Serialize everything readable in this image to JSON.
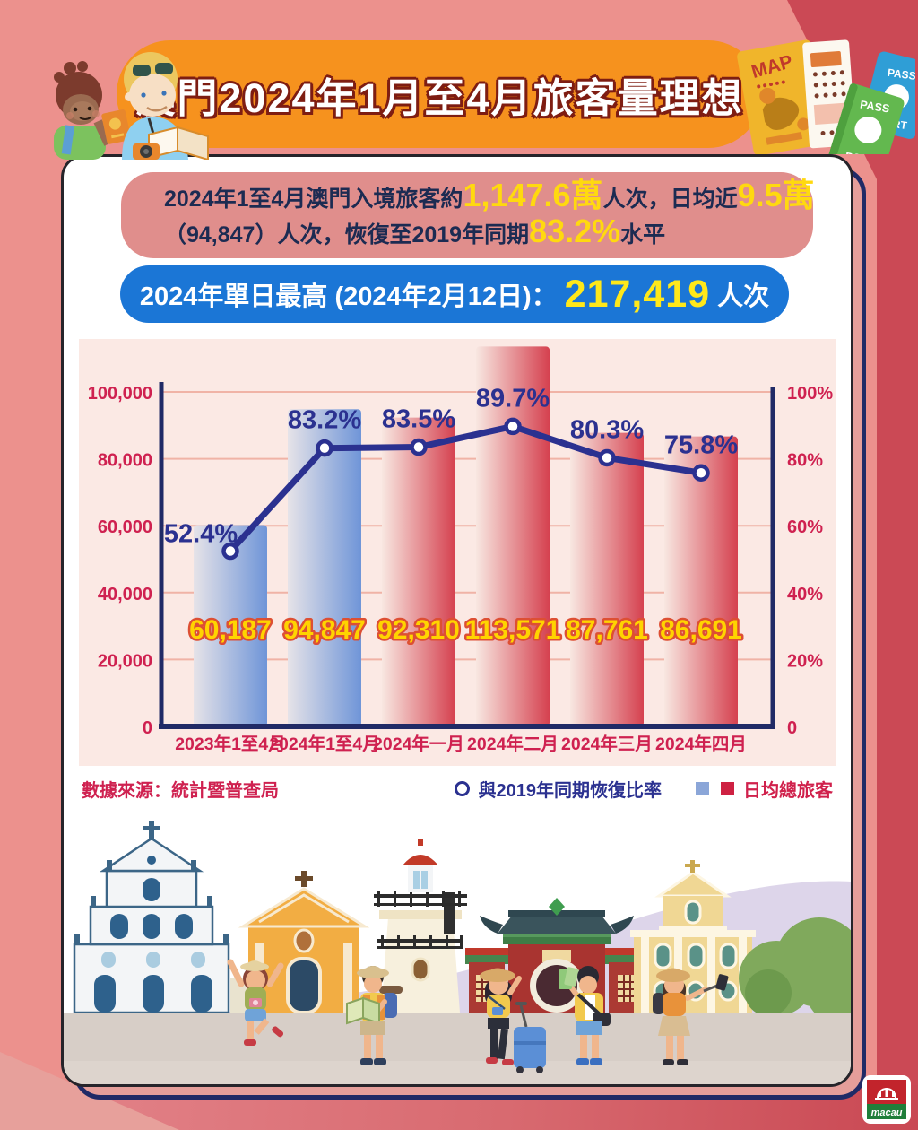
{
  "header": {
    "title": "澳門2024年1月至4月旅客量理想"
  },
  "summary": {
    "l1a": "2024年1至4月澳門入境旅客約",
    "l1b": "1,147.6萬",
    "l1c": "人次，日均近",
    "l1d": "9.5萬",
    "l2a": "（94,847）人次，恢復至2019年同期",
    "l2b": "83.2%",
    "l2c": "水平"
  },
  "record": {
    "label": "2024年單日最高 (2024年2月12日)：",
    "value": "217,419",
    "unit": "人次"
  },
  "chart_data": {
    "type": "bar+line",
    "categories": [
      "2023年1至4月",
      "2024年1至4月",
      "2024年一月",
      "2024年二月",
      "2024年三月",
      "2024年四月"
    ],
    "series": [
      {
        "name": "日均總旅客",
        "type": "bar",
        "values": [
          60187,
          94847,
          92310,
          113571,
          87761,
          86691
        ],
        "value_labels": [
          "60,187",
          "94,847",
          "92,310",
          "113,571",
          "87,761",
          "86,691"
        ],
        "bar_color_keys": [
          "blue",
          "blue",
          "red",
          "red",
          "red",
          "red"
        ]
      },
      {
        "name": "與2019年同期恢復比率",
        "type": "line",
        "values": [
          52.4,
          83.2,
          83.5,
          89.7,
          80.3,
          75.8
        ],
        "point_labels": [
          "52.4%",
          "83.2%",
          "83.5%",
          "89.7%",
          "80.3%",
          "75.8%"
        ]
      }
    ],
    "left_axis": {
      "ticks": [
        "100,000",
        "80,000",
        "60,000",
        "40,000",
        "20,000",
        "0"
      ],
      "tick_values": [
        100000,
        80000,
        60000,
        40000,
        20000,
        0
      ],
      "max": 100000
    },
    "right_axis": {
      "ticks": [
        "100%",
        "80%",
        "60%",
        "40%",
        "20%",
        "0"
      ],
      "tick_values": [
        100,
        80,
        60,
        40,
        20,
        0
      ],
      "max": 100
    },
    "grid": true,
    "legend_position": "bottom-right",
    "colors": {
      "bar_blue_gradient": [
        "#e6e3e8",
        "#6f95d8"
      ],
      "bar_red_gradient": [
        "#f8e7e1",
        "#d5414f"
      ],
      "line": "#2b3190",
      "axis": "#202a66",
      "grid_line": "#f0b3a6",
      "tick_label": "#cf2150",
      "bar_value_fill": "#ffd400",
      "bar_value_stroke": "#dd4f33",
      "pct_label": "#2b3190"
    }
  },
  "legend": {
    "line": "與2019年同期恢復比率",
    "bars": "日均總旅客"
  },
  "source": "數據來源：統計暨普查局",
  "decor": {
    "map": "MAP",
    "pass1": "PASS",
    "pass2": "PORT",
    "logo": "macau"
  },
  "palette": {
    "background": "#ec918d",
    "background_band": "#cb4955",
    "banner": "#f6921e",
    "summary_box": "#e08e8c",
    "record_pill": "#1b76d6",
    "highlight": "#ffd90f",
    "panel": "#fbe9e4"
  }
}
